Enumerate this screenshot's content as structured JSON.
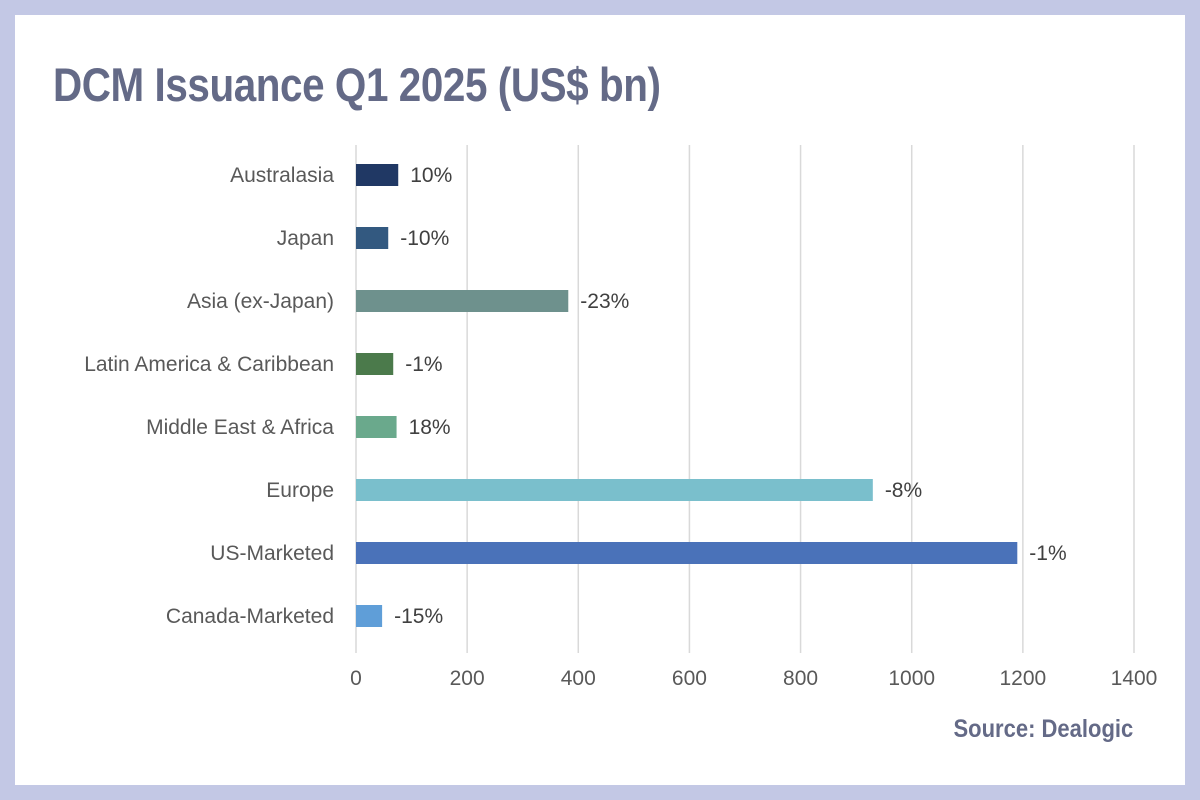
{
  "title": "DCM Issuance Q1 2025 (US$ bn)",
  "source": "Source: Dealogic",
  "chart_data": {
    "type": "bar",
    "orientation": "horizontal",
    "title": "DCM Issuance Q1 2025 (US$ bn)",
    "xlabel": "",
    "ylabel": "",
    "xlim": [
      0,
      1400
    ],
    "xticks": [
      0,
      200,
      400,
      600,
      800,
      1000,
      1200,
      1400
    ],
    "grid": true,
    "legend": "none",
    "categories": [
      "Australasia",
      "Japan",
      "Asia (ex-Japan)",
      "Latin America & Caribbean",
      "Middle East & Africa",
      "Europe",
      "US-Marketed",
      "Canada-Marketed"
    ],
    "values": [
      76,
      58,
      382,
      67,
      73,
      930,
      1190,
      47
    ],
    "data_labels": [
      "10%",
      "-10%",
      "-23%",
      "-1%",
      "18%",
      "-8%",
      "-1%",
      "-15%"
    ],
    "colors": [
      "#203864",
      "#335980",
      "#6e918d",
      "#4b7a4b",
      "#6aa98c",
      "#7abfcc",
      "#4a72b9",
      "#5f9ed8"
    ]
  }
}
